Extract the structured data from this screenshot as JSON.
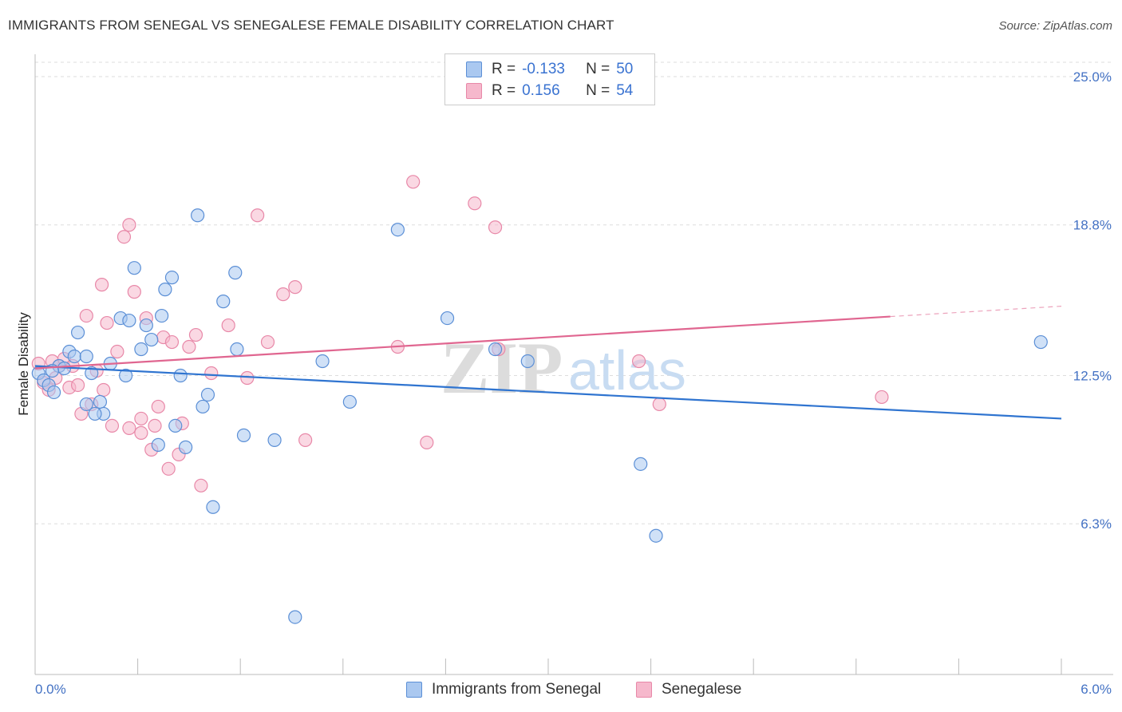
{
  "header": {
    "title": "IMMIGRANTS FROM SENEGAL VS SENEGALESE FEMALE DISABILITY CORRELATION CHART",
    "source": "Source: ZipAtlas.com"
  },
  "legend": {
    "rows": [
      {
        "r_label": "R =",
        "r_value": "-0.133",
        "n_label": "N =",
        "n_value": "50"
      },
      {
        "r_label": "R =",
        "r_value": "0.156",
        "n_label": "N =",
        "n_value": "54"
      }
    ]
  },
  "bottom_legend": {
    "series_a": "Immigrants from Senegal",
    "series_b": "Senegalese"
  },
  "watermark": {
    "zip": "ZIP",
    "atlas": "atlas"
  },
  "colors": {
    "blue_fill": "#aac8f0",
    "blue_stroke": "#5b8fd6",
    "blue_line": "#2f74d0",
    "pink_fill": "#f6b8cc",
    "pink_stroke": "#e888a8",
    "pink_line": "#e06690",
    "tick_text": "#4472C4"
  },
  "chart_data": {
    "type": "scatter",
    "title": "IMMIGRANTS FROM SENEGAL VS SENEGALESE FEMALE DISABILITY CORRELATION CHART",
    "xlabel": "",
    "ylabel": "Female Disability",
    "xlim": [
      0,
      6.0
    ],
    "ylim": [
      0,
      25.6
    ],
    "x_tick_labels": [
      "0.0%",
      "6.0%"
    ],
    "y_ticks": [
      6.3,
      12.5,
      18.8,
      25.0
    ],
    "y_tick_labels": [
      "6.3%",
      "12.5%",
      "18.8%",
      "25.0%"
    ],
    "grid": true,
    "legend_position": "top-center",
    "series": [
      {
        "name": "Immigrants from Senegal",
        "color": "#5b8fd6",
        "r": -0.133,
        "n": 50,
        "trend": {
          "x": [
            0.0,
            6.0
          ],
          "y": [
            12.9,
            10.7
          ],
          "dashed_from": null
        },
        "points": [
          [
            0.02,
            12.6
          ],
          [
            0.05,
            12.3
          ],
          [
            0.08,
            12.1
          ],
          [
            0.11,
            11.8
          ],
          [
            0.14,
            12.9
          ],
          [
            0.17,
            12.8
          ],
          [
            0.2,
            13.5
          ],
          [
            0.23,
            13.3
          ],
          [
            0.25,
            14.3
          ],
          [
            0.3,
            13.3
          ],
          [
            0.33,
            12.6
          ],
          [
            0.38,
            11.4
          ],
          [
            0.4,
            10.9
          ],
          [
            0.44,
            13.0
          ],
          [
            0.5,
            14.9
          ],
          [
            0.53,
            12.5
          ],
          [
            0.55,
            14.8
          ],
          [
            0.58,
            17.0
          ],
          [
            0.62,
            13.6
          ],
          [
            0.65,
            14.6
          ],
          [
            0.68,
            14.0
          ],
          [
            0.72,
            9.6
          ],
          [
            0.74,
            15.0
          ],
          [
            0.76,
            16.1
          ],
          [
            0.8,
            16.6
          ],
          [
            0.82,
            10.4
          ],
          [
            0.85,
            12.5
          ],
          [
            0.88,
            9.5
          ],
          [
            0.95,
            19.2
          ],
          [
            0.98,
            11.2
          ],
          [
            1.01,
            11.7
          ],
          [
            1.04,
            7.0
          ],
          [
            1.1,
            15.6
          ],
          [
            1.17,
            16.8
          ],
          [
            1.18,
            13.6
          ],
          [
            1.22,
            10.0
          ],
          [
            1.4,
            9.8
          ],
          [
            1.52,
            2.4
          ],
          [
            1.68,
            13.1
          ],
          [
            1.84,
            11.4
          ],
          [
            2.12,
            18.6
          ],
          [
            2.41,
            14.9
          ],
          [
            2.69,
            13.6
          ],
          [
            2.88,
            13.1
          ],
          [
            3.54,
            8.8
          ],
          [
            3.63,
            5.8
          ],
          [
            5.88,
            13.9
          ],
          [
            0.3,
            11.3
          ],
          [
            0.1,
            12.7
          ],
          [
            0.35,
            10.9
          ]
        ]
      },
      {
        "name": "Senegalese",
        "color": "#e888a8",
        "r": 0.156,
        "n": 54,
        "trend": {
          "x": [
            0.0,
            6.0
          ],
          "y": [
            12.8,
            15.4
          ],
          "dashed_from": 5.0
        },
        "points": [
          [
            0.02,
            13.0
          ],
          [
            0.05,
            12.2
          ],
          [
            0.08,
            11.9
          ],
          [
            0.1,
            13.1
          ],
          [
            0.14,
            12.9
          ],
          [
            0.17,
            13.2
          ],
          [
            0.2,
            12.0
          ],
          [
            0.22,
            12.9
          ],
          [
            0.25,
            12.1
          ],
          [
            0.27,
            10.9
          ],
          [
            0.3,
            15.0
          ],
          [
            0.33,
            11.3
          ],
          [
            0.36,
            12.7
          ],
          [
            0.39,
            16.3
          ],
          [
            0.42,
            14.7
          ],
          [
            0.45,
            10.4
          ],
          [
            0.48,
            13.5
          ],
          [
            0.52,
            18.3
          ],
          [
            0.55,
            18.8
          ],
          [
            0.58,
            16.0
          ],
          [
            0.62,
            10.7
          ],
          [
            0.65,
            14.9
          ],
          [
            0.68,
            9.4
          ],
          [
            0.7,
            10.4
          ],
          [
            0.72,
            11.2
          ],
          [
            0.75,
            14.1
          ],
          [
            0.78,
            8.6
          ],
          [
            0.8,
            13.9
          ],
          [
            0.84,
            9.2
          ],
          [
            0.86,
            10.5
          ],
          [
            0.9,
            13.7
          ],
          [
            0.94,
            14.2
          ],
          [
            0.97,
            7.9
          ],
          [
            1.03,
            12.6
          ],
          [
            1.13,
            14.6
          ],
          [
            1.24,
            12.4
          ],
          [
            1.3,
            19.2
          ],
          [
            1.36,
            13.9
          ],
          [
            1.45,
            15.9
          ],
          [
            1.52,
            16.2
          ],
          [
            1.58,
            9.8
          ],
          [
            2.12,
            13.7
          ],
          [
            2.21,
            20.6
          ],
          [
            2.29,
            9.7
          ],
          [
            2.57,
            19.7
          ],
          [
            2.69,
            18.7
          ],
          [
            2.71,
            13.6
          ],
          [
            3.53,
            13.1
          ],
          [
            3.65,
            11.3
          ],
          [
            4.95,
            11.6
          ],
          [
            0.4,
            11.9
          ],
          [
            0.55,
            10.3
          ],
          [
            0.62,
            10.1
          ],
          [
            0.12,
            12.4
          ]
        ]
      }
    ]
  }
}
